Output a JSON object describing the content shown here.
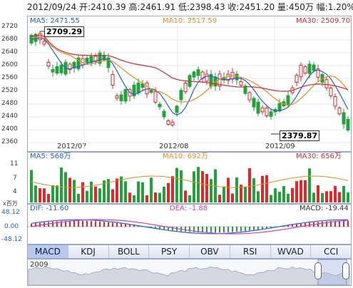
{
  "header": {
    "summary": "2012/09/24 开:2410.39 高:2461.91 低:2398.43 收:2451.20 量:450万 幅:1.20%"
  },
  "main_chart": {
    "ma5_label": "MA5: 2471.55",
    "ma10_label": "MA10: 2517.59",
    "ma30_label": "MA30: 2509.70",
    "y_ticks": [
      "2720",
      "2680",
      "2640",
      "2600",
      "2560",
      "2520",
      "2480",
      "2440",
      "2400",
      "2360"
    ],
    "x_labels": [
      "2012/07",
      "2012/08",
      "2012/09"
    ],
    "high_callout": "2709.29",
    "low_callout": "2379.87"
  },
  "volume_chart": {
    "ma5_label": "MA5: 568万",
    "ma10_label": "MA10: 692万",
    "ma30_label": "MA30: 656万",
    "y_ticks": [
      "11",
      "7",
      "4"
    ],
    "unit_label": "x百万"
  },
  "macd_chart": {
    "dif_label": "DIF: -11.60",
    "dea_label": "DEA: -1.88",
    "macd_label": "MACD: -19.44",
    "y_ticks": [
      "48.12",
      "0.00",
      "-48.12"
    ]
  },
  "tabs": [
    "MACD",
    "KDJ",
    "BOLL",
    "PSY",
    "OBV",
    "RSI",
    "WVAD",
    "CCI"
  ],
  "active_tab": "MACD",
  "overview": {
    "year_label": "2009"
  },
  "colors": {
    "up": "#e8262a",
    "down": "#1fa33a",
    "ma5": "#1f5fd6",
    "ma10": "#f08a1c",
    "ma30": "#d22c2c",
    "dea": "#d23cc8",
    "border": "#9aa7c8",
    "tab_active": "#b8c8ef"
  }
}
